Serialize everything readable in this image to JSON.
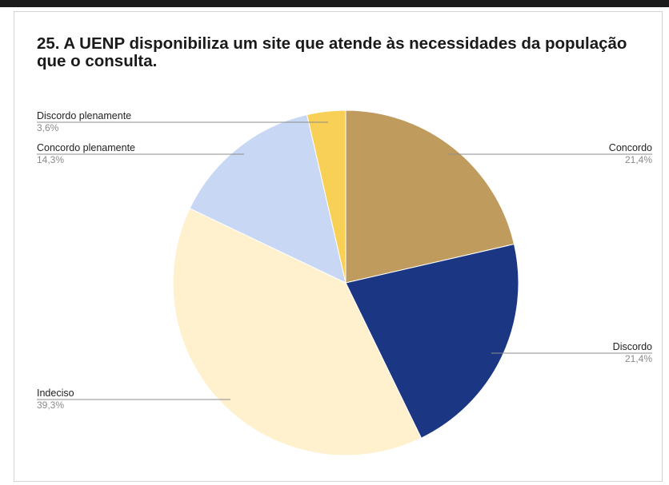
{
  "chart_data": {
    "type": "pie",
    "title": "25. A UENP disponibiliza um site que atende às necessidades da população que o consulta.",
    "slices": [
      {
        "label": "Concordo",
        "value": 21.4,
        "pct_label": "21,4%",
        "color": "#bf9b5e"
      },
      {
        "label": "Discordo",
        "value": 21.4,
        "pct_label": "21,4%",
        "color": "#1b3784"
      },
      {
        "label": "Indeciso",
        "value": 39.3,
        "pct_label": "39,3%",
        "color": "#fff1cd"
      },
      {
        "label": "Concordo plenamente",
        "value": 14.3,
        "pct_label": "14,3%",
        "color": "#c8d7f3"
      },
      {
        "label": "Discordo plenamente",
        "value": 3.6,
        "pct_label": "3,6%",
        "color": "#f9d056"
      }
    ],
    "start_angle_deg": 0,
    "direction": "clockwise",
    "legend": "none"
  }
}
